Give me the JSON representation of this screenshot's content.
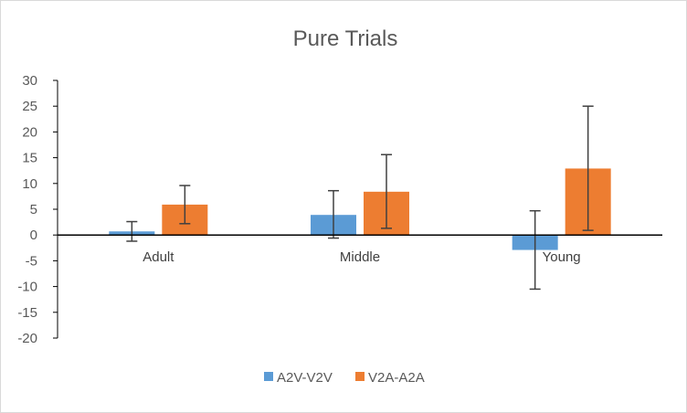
{
  "chart_data": {
    "type": "bar",
    "title": "Pure Trials",
    "xlabel": "",
    "ylabel": "",
    "categories": [
      "Adult",
      "Middle",
      "Young"
    ],
    "ylim": [
      -20,
      30
    ],
    "yticks": [
      30,
      25,
      20,
      15,
      10,
      5,
      0,
      -5,
      -10,
      -15,
      -20
    ],
    "grid": false,
    "legend_position": "bottom",
    "series": [
      {
        "name": "A2V-V2V",
        "color": "#5b9bd5",
        "values": [
          0.7,
          3.9,
          -2.9
        ],
        "error_low": [
          -1.2,
          -0.6,
          -10.5
        ],
        "error_high": [
          2.6,
          8.6,
          4.7
        ]
      },
      {
        "name": "V2A-A2A",
        "color": "#ed7d31",
        "values": [
          5.9,
          8.4,
          12.9
        ],
        "error_low": [
          2.2,
          1.3,
          0.9
        ],
        "error_high": [
          9.6,
          15.6,
          25.0
        ]
      }
    ]
  }
}
